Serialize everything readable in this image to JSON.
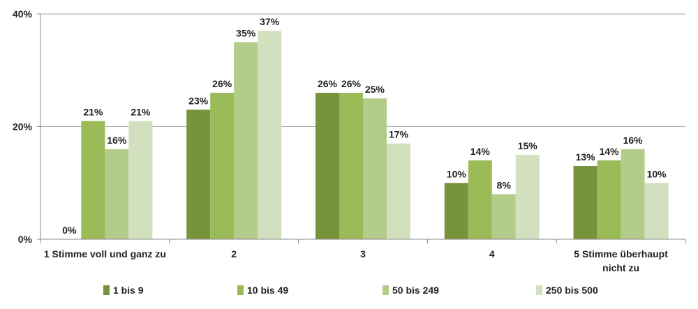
{
  "chart_data": {
    "type": "bar",
    "title": "",
    "xlabel": "",
    "ylabel": "",
    "ylim": [
      0,
      40
    ],
    "y_ticks": [
      0,
      20,
      40
    ],
    "y_tick_labels": [
      "0%",
      "20%",
      "40%"
    ],
    "grid": "horizontal",
    "legend_position": "bottom",
    "categories": [
      [
        "1 Stimme voll und ganz zu"
      ],
      [
        "2"
      ],
      [
        "3"
      ],
      [
        "4"
      ],
      [
        "5 Stimme überhaupt",
        "nicht zu"
      ]
    ],
    "series": [
      {
        "name": "1 bis 9",
        "color": "#77933c",
        "values": [
          0,
          23,
          26,
          10,
          13
        ],
        "labels": [
          "0%",
          "23%",
          "26%",
          "10%",
          "13%"
        ]
      },
      {
        "name": "10 bis 49",
        "color": "#9bbb59",
        "values": [
          21,
          26,
          26,
          14,
          14
        ],
        "labels": [
          "21%",
          "26%",
          "26%",
          "14%",
          "14%"
        ]
      },
      {
        "name": "50 bis 249",
        "color": "#b3cc8a",
        "values": [
          16,
          35,
          25,
          8,
          16
        ],
        "labels": [
          "16%",
          "35%",
          "25%",
          "8%",
          "16%"
        ]
      },
      {
        "name": "250 bis 500",
        "color": "#d3e0c0",
        "values": [
          21,
          37,
          17,
          15,
          10
        ],
        "labels": [
          "21%",
          "37%",
          "17%",
          "15%",
          "10%"
        ]
      }
    ]
  }
}
